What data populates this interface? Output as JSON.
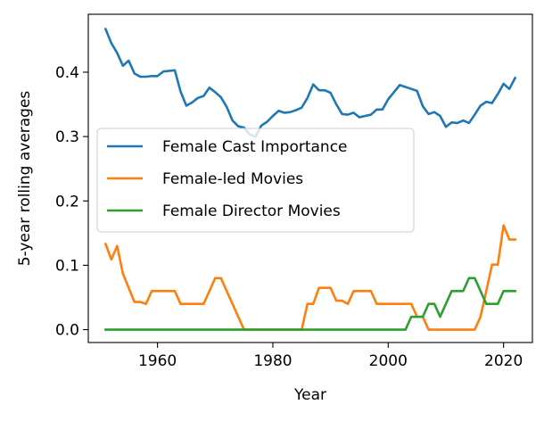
{
  "chart_data": {
    "type": "line",
    "xlabel": "Year",
    "ylabel": "5-year rolling averages",
    "xlim": [
      1948,
      2025
    ],
    "ylim": [
      -0.02,
      0.49
    ],
    "xticks": [
      1960,
      1980,
      2000,
      2020
    ],
    "yticks": [
      0.0,
      0.1,
      0.2,
      0.3,
      0.4
    ],
    "ytick_labels": [
      "0.0",
      "0.1",
      "0.2",
      "0.3",
      "0.4"
    ],
    "grid": false,
    "legend_position": "center-left",
    "series": [
      {
        "name": "Female Cast Importance",
        "color": "#1f77b4",
        "x": [
          1951,
          1952,
          1953,
          1954,
          1955,
          1956,
          1957,
          1958,
          1959,
          1960,
          1961,
          1962,
          1963,
          1964,
          1965,
          1966,
          1967,
          1968,
          1969,
          1970,
          1971,
          1972,
          1973,
          1974,
          1975,
          1976,
          1977,
          1978,
          1979,
          1980,
          1981,
          1982,
          1983,
          1984,
          1985,
          1986,
          1987,
          1988,
          1989,
          1990,
          1991,
          1992,
          1993,
          1994,
          1995,
          1996,
          1997,
          1998,
          1999,
          2000,
          2001,
          2002,
          2003,
          2004,
          2005,
          2006,
          2007,
          2008,
          2009,
          2010,
          2011,
          2012,
          2013,
          2014,
          2015,
          2016,
          2017,
          2018,
          2019,
          2020,
          2021,
          2022
        ],
        "y": [
          0.467,
          0.445,
          0.43,
          0.41,
          0.418,
          0.398,
          0.393,
          0.393,
          0.394,
          0.394,
          0.401,
          0.402,
          0.403,
          0.37,
          0.348,
          0.353,
          0.36,
          0.363,
          0.376,
          0.369,
          0.361,
          0.346,
          0.325,
          0.316,
          0.314,
          0.303,
          0.3,
          0.317,
          0.323,
          0.332,
          0.34,
          0.337,
          0.338,
          0.341,
          0.345,
          0.36,
          0.381,
          0.372,
          0.372,
          0.368,
          0.35,
          0.335,
          0.334,
          0.337,
          0.33,
          0.332,
          0.334,
          0.342,
          0.342,
          0.358,
          0.369,
          0.38,
          0.377,
          0.374,
          0.371,
          0.347,
          0.335,
          0.338,
          0.332,
          0.315,
          0.322,
          0.321,
          0.325,
          0.321,
          0.334,
          0.348,
          0.354,
          0.352,
          0.366,
          0.382,
          0.374,
          0.391
        ]
      },
      {
        "name": "Female-led Movies",
        "color": "#ff7f0e",
        "x": [
          1951,
          1952,
          1953,
          1954,
          1955,
          1956,
          1957,
          1958,
          1959,
          1960,
          1961,
          1962,
          1963,
          1964,
          1965,
          1966,
          1967,
          1968,
          1969,
          1970,
          1971,
          1972,
          1973,
          1974,
          1975,
          1976,
          1977,
          1978,
          1979,
          1980,
          1981,
          1982,
          1983,
          1984,
          1985,
          1986,
          1987,
          1988,
          1989,
          1990,
          1991,
          1992,
          1993,
          1994,
          1995,
          1996,
          1997,
          1998,
          1999,
          2000,
          2001,
          2002,
          2003,
          2004,
          2005,
          2006,
          2007,
          2008,
          2009,
          2010,
          2011,
          2012,
          2013,
          2014,
          2015,
          2016,
          2017,
          2018,
          2019,
          2020,
          2021,
          2022
        ],
        "y": [
          0.133,
          0.109,
          0.13,
          0.087,
          0.065,
          0.043,
          0.043,
          0.04,
          0.06,
          0.06,
          0.06,
          0.06,
          0.06,
          0.04,
          0.04,
          0.04,
          0.04,
          0.04,
          0.06,
          0.08,
          0.08,
          0.06,
          0.04,
          0.02,
          0.0,
          0.0,
          0.0,
          0.0,
          0.0,
          0.0,
          0.0,
          0.0,
          0.0,
          0.0,
          0.0,
          0.04,
          0.04,
          0.065,
          0.065,
          0.065,
          0.045,
          0.045,
          0.04,
          0.06,
          0.06,
          0.06,
          0.06,
          0.04,
          0.04,
          0.04,
          0.04,
          0.04,
          0.04,
          0.04,
          0.02,
          0.02,
          0.0,
          0.0,
          0.0,
          0.0,
          0.0,
          0.0,
          0.0,
          0.0,
          0.0,
          0.02,
          0.06,
          0.101,
          0.101,
          0.162,
          0.14,
          0.14
        ]
      },
      {
        "name": "Female Director Movies",
        "color": "#2ca02c",
        "x": [
          1951,
          1952,
          1953,
          1954,
          1955,
          1956,
          1957,
          1958,
          1959,
          1960,
          1961,
          1962,
          1963,
          1964,
          1965,
          1966,
          1967,
          1968,
          1969,
          1970,
          1971,
          1972,
          1973,
          1974,
          1975,
          1976,
          1977,
          1978,
          1979,
          1980,
          1981,
          1982,
          1983,
          1984,
          1985,
          1986,
          1987,
          1988,
          1989,
          1990,
          1991,
          1992,
          1993,
          1994,
          1995,
          1996,
          1997,
          1998,
          1999,
          2000,
          2001,
          2002,
          2003,
          2004,
          2005,
          2006,
          2007,
          2008,
          2009,
          2010,
          2011,
          2012,
          2013,
          2014,
          2015,
          2016,
          2017,
          2018,
          2019,
          2020,
          2021,
          2022
        ],
        "y": [
          0,
          0,
          0,
          0,
          0,
          0,
          0,
          0,
          0,
          0,
          0,
          0,
          0,
          0,
          0,
          0,
          0,
          0,
          0,
          0,
          0,
          0,
          0,
          0,
          0,
          0,
          0,
          0,
          0,
          0,
          0,
          0,
          0,
          0,
          0,
          0,
          0,
          0,
          0,
          0,
          0,
          0,
          0,
          0,
          0,
          0,
          0,
          0,
          0,
          0,
          0,
          0,
          0,
          0.02,
          0.02,
          0.02,
          0.04,
          0.04,
          0.02,
          0.04,
          0.06,
          0.06,
          0.06,
          0.08,
          0.08,
          0.06,
          0.04,
          0.04,
          0.04,
          0.06,
          0.06,
          0.06
        ]
      }
    ]
  }
}
